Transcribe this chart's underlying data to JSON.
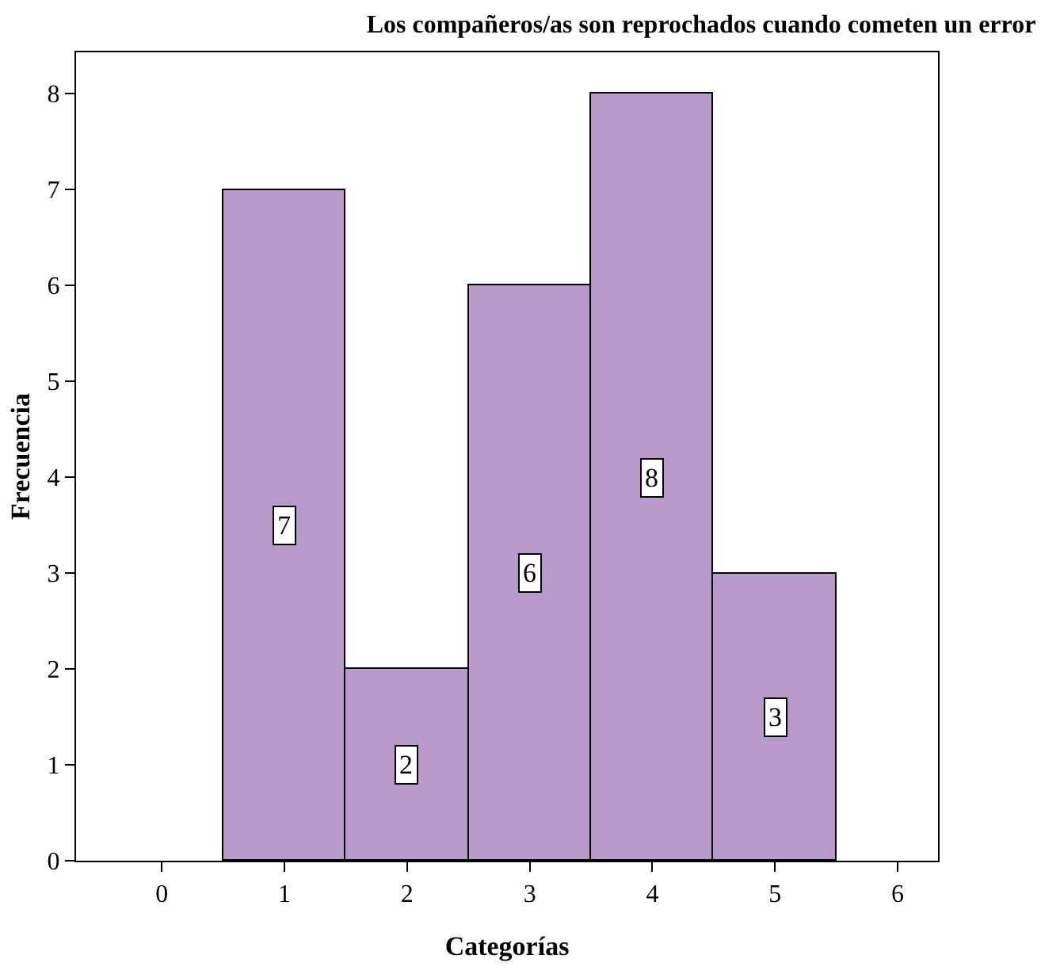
{
  "chart_data": {
    "type": "histogram",
    "title": "Los compañeros/as son reprochados cuando cometen un error",
    "xlabel": "Categorías",
    "ylabel": "Frecuencia",
    "bins": [
      0.5,
      1.5,
      2.5,
      3.5,
      4.5,
      5.5
    ],
    "values": [
      7,
      2,
      6,
      8,
      3
    ],
    "color": "#b89bca",
    "xlim": [
      -0.7,
      6.33
    ],
    "xticks": [
      0,
      1,
      2,
      3,
      4,
      5,
      6
    ],
    "ylim": [
      0,
      8.43
    ],
    "yticks": [
      0,
      1,
      2,
      3,
      4,
      5,
      6,
      7,
      8
    ],
    "data_labels": true
  }
}
